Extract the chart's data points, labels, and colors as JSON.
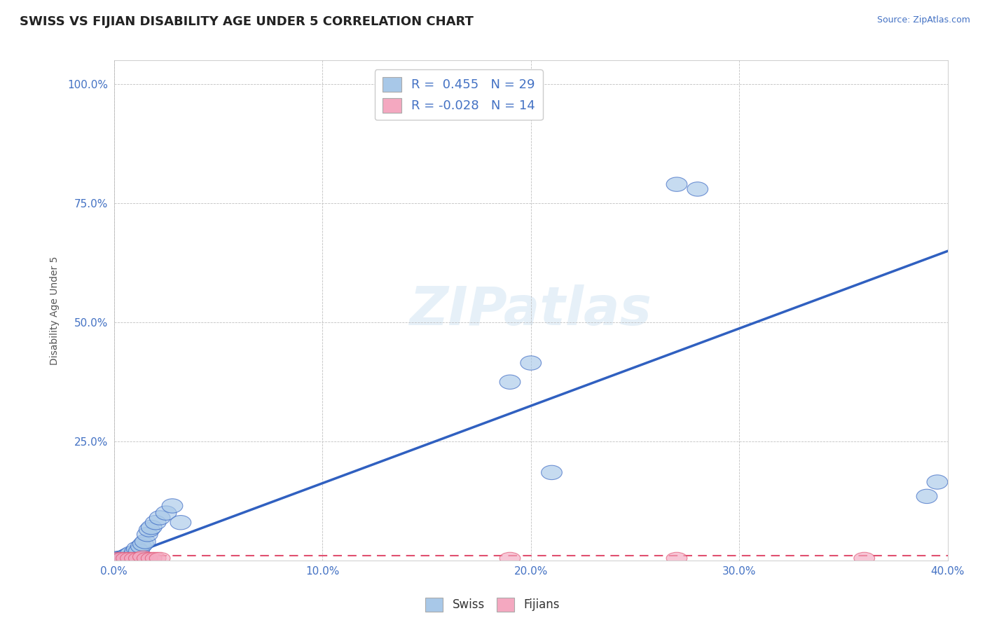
{
  "title": "SWISS VS FIJIAN DISABILITY AGE UNDER 5 CORRELATION CHART",
  "source_text": "Source: ZipAtlas.com",
  "ylabel": "Disability Age Under 5",
  "xlabel_swiss": "Swiss",
  "xlabel_fijians": "Fijians",
  "r_swiss": 0.455,
  "n_swiss": 29,
  "r_fijian": -0.028,
  "n_fijian": 14,
  "swiss_color": "#A8C8E8",
  "fijian_color": "#F4A8C0",
  "trendline_swiss_color": "#3060C0",
  "trendline_fijian_color": "#E05070",
  "background_color": "#FFFFFF",
  "watermark_text": "ZIPatlas",
  "xlim": [
    0.0,
    0.4
  ],
  "ylim": [
    0.0,
    1.05
  ],
  "xtick_labels": [
    "0.0%",
    "10.0%",
    "20.0%",
    "30.0%",
    "40.0%"
  ],
  "xtick_vals": [
    0.0,
    0.1,
    0.2,
    0.3,
    0.4
  ],
  "ytick_labels": [
    "25.0%",
    "50.0%",
    "75.0%",
    "100.0%"
  ],
  "ytick_vals": [
    0.25,
    0.5,
    0.75,
    1.0
  ],
  "swiss_x": [
    0.002,
    0.003,
    0.004,
    0.005,
    0.006,
    0.007,
    0.008,
    0.009,
    0.01,
    0.011,
    0.012,
    0.013,
    0.014,
    0.015,
    0.016,
    0.017,
    0.018,
    0.02,
    0.022,
    0.025,
    0.028,
    0.032,
    0.19,
    0.2,
    0.21,
    0.27,
    0.28,
    0.39,
    0.395
  ],
  "swiss_y": [
    0.005,
    0.005,
    0.005,
    0.008,
    0.01,
    0.012,
    0.015,
    0.01,
    0.018,
    0.025,
    0.02,
    0.03,
    0.035,
    0.04,
    0.055,
    0.065,
    0.07,
    0.08,
    0.09,
    0.1,
    0.115,
    0.08,
    0.375,
    0.415,
    0.185,
    0.79,
    0.78,
    0.135,
    0.165
  ],
  "fijian_x": [
    0.002,
    0.004,
    0.006,
    0.008,
    0.01,
    0.012,
    0.014,
    0.016,
    0.018,
    0.02,
    0.022,
    0.19,
    0.27,
    0.36
  ],
  "fijian_y": [
    0.005,
    0.005,
    0.005,
    0.005,
    0.005,
    0.005,
    0.008,
    0.005,
    0.005,
    0.005,
    0.005,
    0.005,
    0.005,
    0.005
  ],
  "swiss_trendline_x0": 0.0,
  "swiss_trendline_y0": 0.0,
  "swiss_trendline_x1": 0.4,
  "swiss_trendline_y1": 0.65,
  "fijian_trendline_x0": 0.0,
  "fijian_trendline_y0": 0.01,
  "fijian_trendline_x1": 0.4,
  "fijian_trendline_y1": 0.01,
  "title_fontsize": 13,
  "label_fontsize": 10,
  "tick_fontsize": 11,
  "legend_fontsize": 13
}
